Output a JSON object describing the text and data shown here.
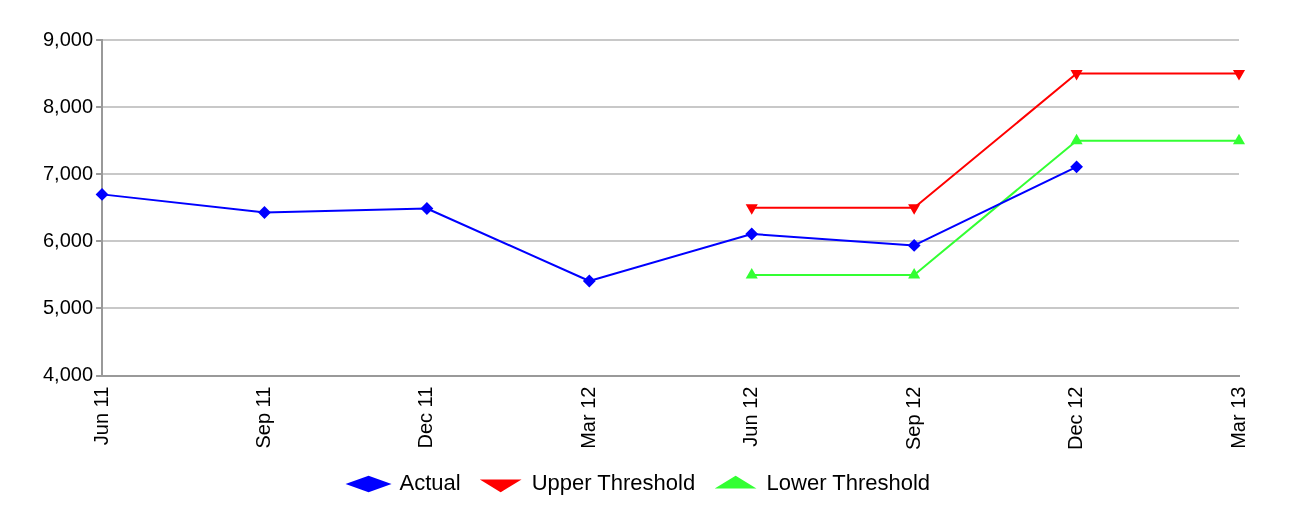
{
  "chart_data": {
    "type": "line",
    "categories": [
      "Jun 11",
      "Sep 11",
      "Dec 11",
      "Mar 12",
      "Jun 12",
      "Sep 12",
      "Dec 12",
      "Mar 13"
    ],
    "series": [
      {
        "name": "Actual",
        "color": "#0000ff",
        "marker": "diamond",
        "values": [
          6700,
          6430,
          6490,
          5410,
          6110,
          5940,
          7110,
          null
        ]
      },
      {
        "name": "Upper Threshold",
        "color": "#ff0000",
        "marker": "triangle-down",
        "values": [
          null,
          null,
          null,
          null,
          6500,
          6500,
          8500,
          8500
        ]
      },
      {
        "name": "Lower Threshold",
        "color": "#33ff33",
        "marker": "triangle",
        "values": [
          null,
          null,
          null,
          null,
          5500,
          5500,
          7500,
          7500
        ]
      }
    ],
    "ylim": [
      4000,
      9000
    ],
    "yticks": [
      {
        "value": 4000,
        "label": "4,000"
      },
      {
        "value": 5000,
        "label": "5,000"
      },
      {
        "value": 6000,
        "label": "6,000"
      },
      {
        "value": 7000,
        "label": "7,000"
      },
      {
        "value": 8000,
        "label": "8,000"
      },
      {
        "value": 9000,
        "label": "9,000"
      }
    ],
    "grid": "y",
    "legend": "bottom",
    "line_style": "solid"
  }
}
